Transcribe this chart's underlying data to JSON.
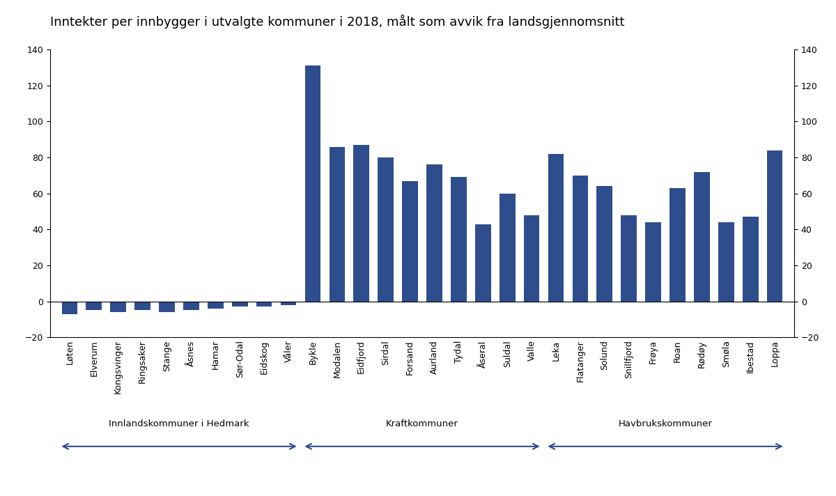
{
  "title": "Inntekter per innbygger i utvalgte kommuner i 2018, målt som avvik fra landsgjennomsnitt",
  "bar_color": "#2e4d8c",
  "categories": [
    "Løten",
    "Elverum",
    "Kongsvinger",
    "Ringsaker",
    "Stange",
    "Åsnes",
    "Hamar",
    "Sør-Odal",
    "Eidskog",
    "Våler",
    "Bykle",
    "Modalen",
    "Eidfjord",
    "Sirdal",
    "Forsand",
    "Aurland",
    "Tydal",
    "Åseral",
    "Suldal",
    "Valle",
    "Leka",
    "Flatanger",
    "Solund",
    "Snillfjord",
    "Frøya",
    "Roan",
    "Rødøy",
    "Smøla",
    "Ibestad",
    "Loppa"
  ],
  "values": [
    -7,
    -5,
    -6,
    -5,
    -6,
    -5,
    -4,
    -3,
    -3,
    -2,
    131,
    86,
    87,
    80,
    67,
    76,
    69,
    43,
    60,
    48,
    82,
    70,
    64,
    48,
    44,
    63,
    72,
    44,
    47,
    84
  ],
  "group_labels": [
    "Innlandskommuner i Hedmark",
    "Kraftkommuner",
    "Havbrukskommuner"
  ],
  "group_ranges": [
    [
      0,
      9
    ],
    [
      10,
      19
    ],
    [
      20,
      29
    ]
  ],
  "ylim": [
    -20,
    140
  ],
  "yticks": [
    -20,
    0,
    20,
    40,
    60,
    80,
    100,
    120,
    140
  ],
  "background_color": "#ffffff",
  "title_fontsize": 13,
  "tick_fontsize": 9,
  "arrow_color": "#2e4d8c"
}
